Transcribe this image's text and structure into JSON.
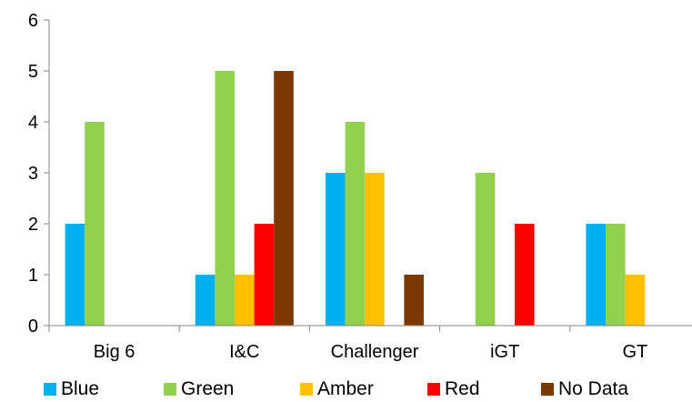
{
  "chart_data": {
    "type": "bar",
    "categories": [
      "Big 6",
      "I&C",
      "Challenger",
      "iGT",
      "GT"
    ],
    "series": [
      {
        "name": "Blue",
        "color": "#00b0f0",
        "values": [
          2,
          1,
          3,
          0,
          2
        ]
      },
      {
        "name": "Green",
        "color": "#92d050",
        "values": [
          4,
          5,
          4,
          3,
          2
        ]
      },
      {
        "name": "Amber",
        "color": "#ffc000",
        "values": [
          0,
          1,
          3,
          0,
          1
        ]
      },
      {
        "name": "Red",
        "color": "#ff0000",
        "values": [
          0,
          2,
          0,
          2,
          0
        ]
      },
      {
        "name": "No Data",
        "color": "#7b3800",
        "values": [
          0,
          5,
          1,
          0,
          0
        ]
      }
    ],
    "yticks": [
      "0",
      "1",
      "2",
      "3",
      "4",
      "5",
      "6"
    ],
    "ylim": [
      0,
      6
    ],
    "grid": false,
    "legend_position": "bottom"
  }
}
